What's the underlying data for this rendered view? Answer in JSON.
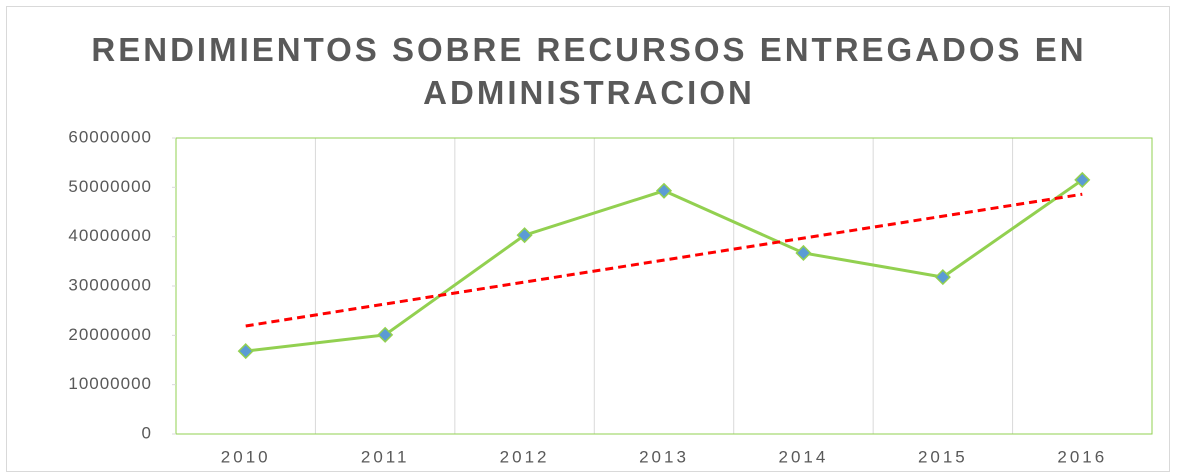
{
  "chart_data": {
    "type": "line",
    "title": "RENDIMIENTOS SOBRE RECURSOS ENTREGADOS EN ADMINISTRACION",
    "categories": [
      "2010",
      "2011",
      "2012",
      "2013",
      "2014",
      "2015",
      "2016"
    ],
    "series": [
      {
        "color": "#92d050",
        "marker_color": "#5b9bd5",
        "values": [
          16800000,
          20100000,
          40300000,
          49300000,
          36700000,
          31800000,
          51500000
        ]
      }
    ],
    "trendline": {
      "type": "linear",
      "color": "#ff0000",
      "start": 21900000,
      "end": 48600000
    },
    "ylim": [
      0,
      60000000
    ],
    "yticks": [
      0,
      10000000,
      20000000,
      30000000,
      40000000,
      50000000,
      60000000
    ],
    "grid": "vertical"
  }
}
